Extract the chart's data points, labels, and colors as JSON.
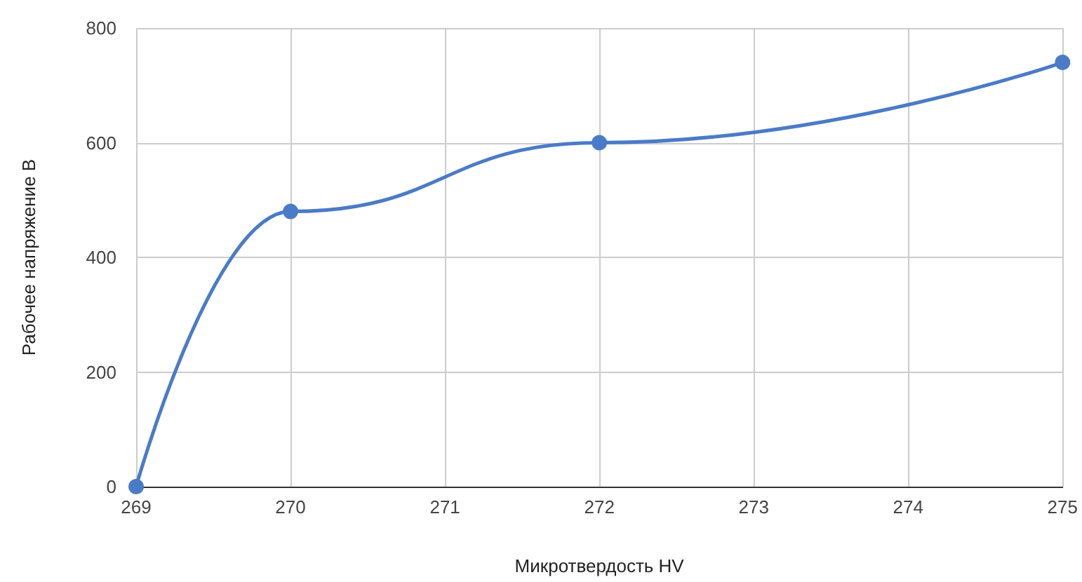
{
  "chart_data": {
    "type": "line",
    "xlabel": "Микротвердость HV",
    "ylabel": "Рабочее напряжение В",
    "x": [
      269,
      270,
      272,
      275
    ],
    "series": [
      {
        "color": "#4a7bc8",
        "values": [
          0,
          480,
          600,
          740
        ]
      }
    ],
    "xlim": [
      269,
      275
    ],
    "xticks": [
      269,
      270,
      271,
      272,
      273,
      274,
      275
    ],
    "ylim": [
      0,
      800
    ],
    "yticks": [
      0,
      200,
      400,
      600,
      800
    ],
    "grid": true,
    "marker": "circle",
    "line_style": "solid"
  }
}
